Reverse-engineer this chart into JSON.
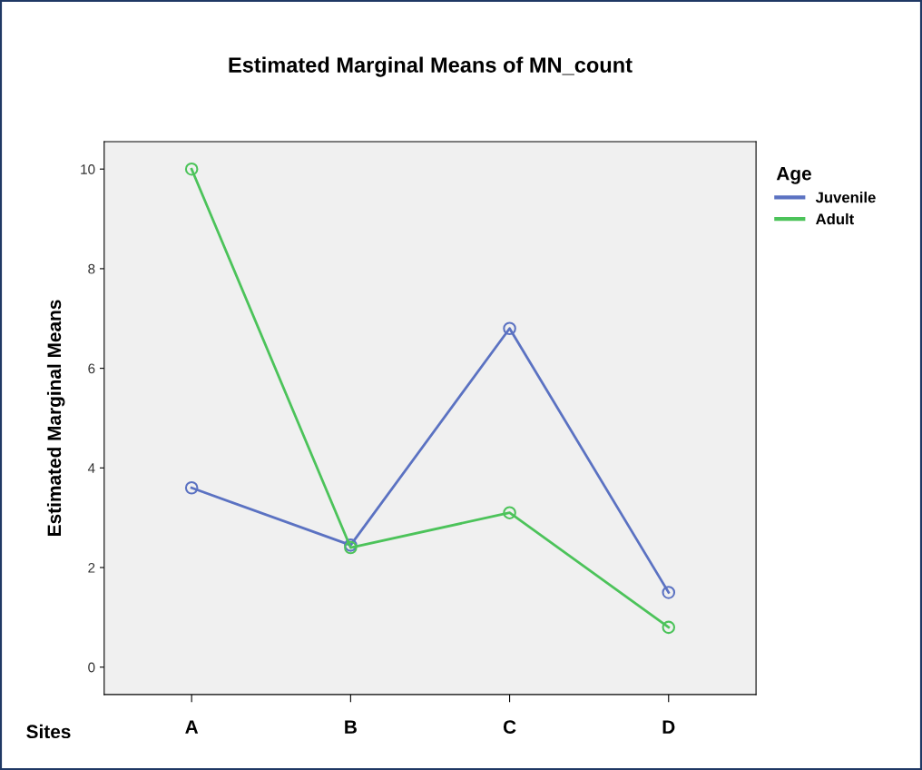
{
  "chart_data": {
    "type": "line",
    "title": "Estimated Marginal Means of MN_count",
    "xlabel": "Sites",
    "ylabel": "Estimated Marginal Means",
    "legend_title": "Age",
    "categories": [
      "A",
      "B",
      "C",
      "D"
    ],
    "series": [
      {
        "name": "Juvenile",
        "color": "#5b72c2",
        "values": [
          3.6,
          2.45,
          6.8,
          1.5
        ]
      },
      {
        "name": "Adult",
        "color": "#4cc35a",
        "values": [
          10,
          2.4,
          3.1,
          0.8
        ]
      }
    ],
    "ylim": [
      -0.55,
      10.55
    ],
    "yticks": [
      0,
      2,
      4,
      6,
      8,
      10
    ],
    "grid": false,
    "legend": "top right",
    "marker": "circle",
    "line_style": "solid"
  }
}
